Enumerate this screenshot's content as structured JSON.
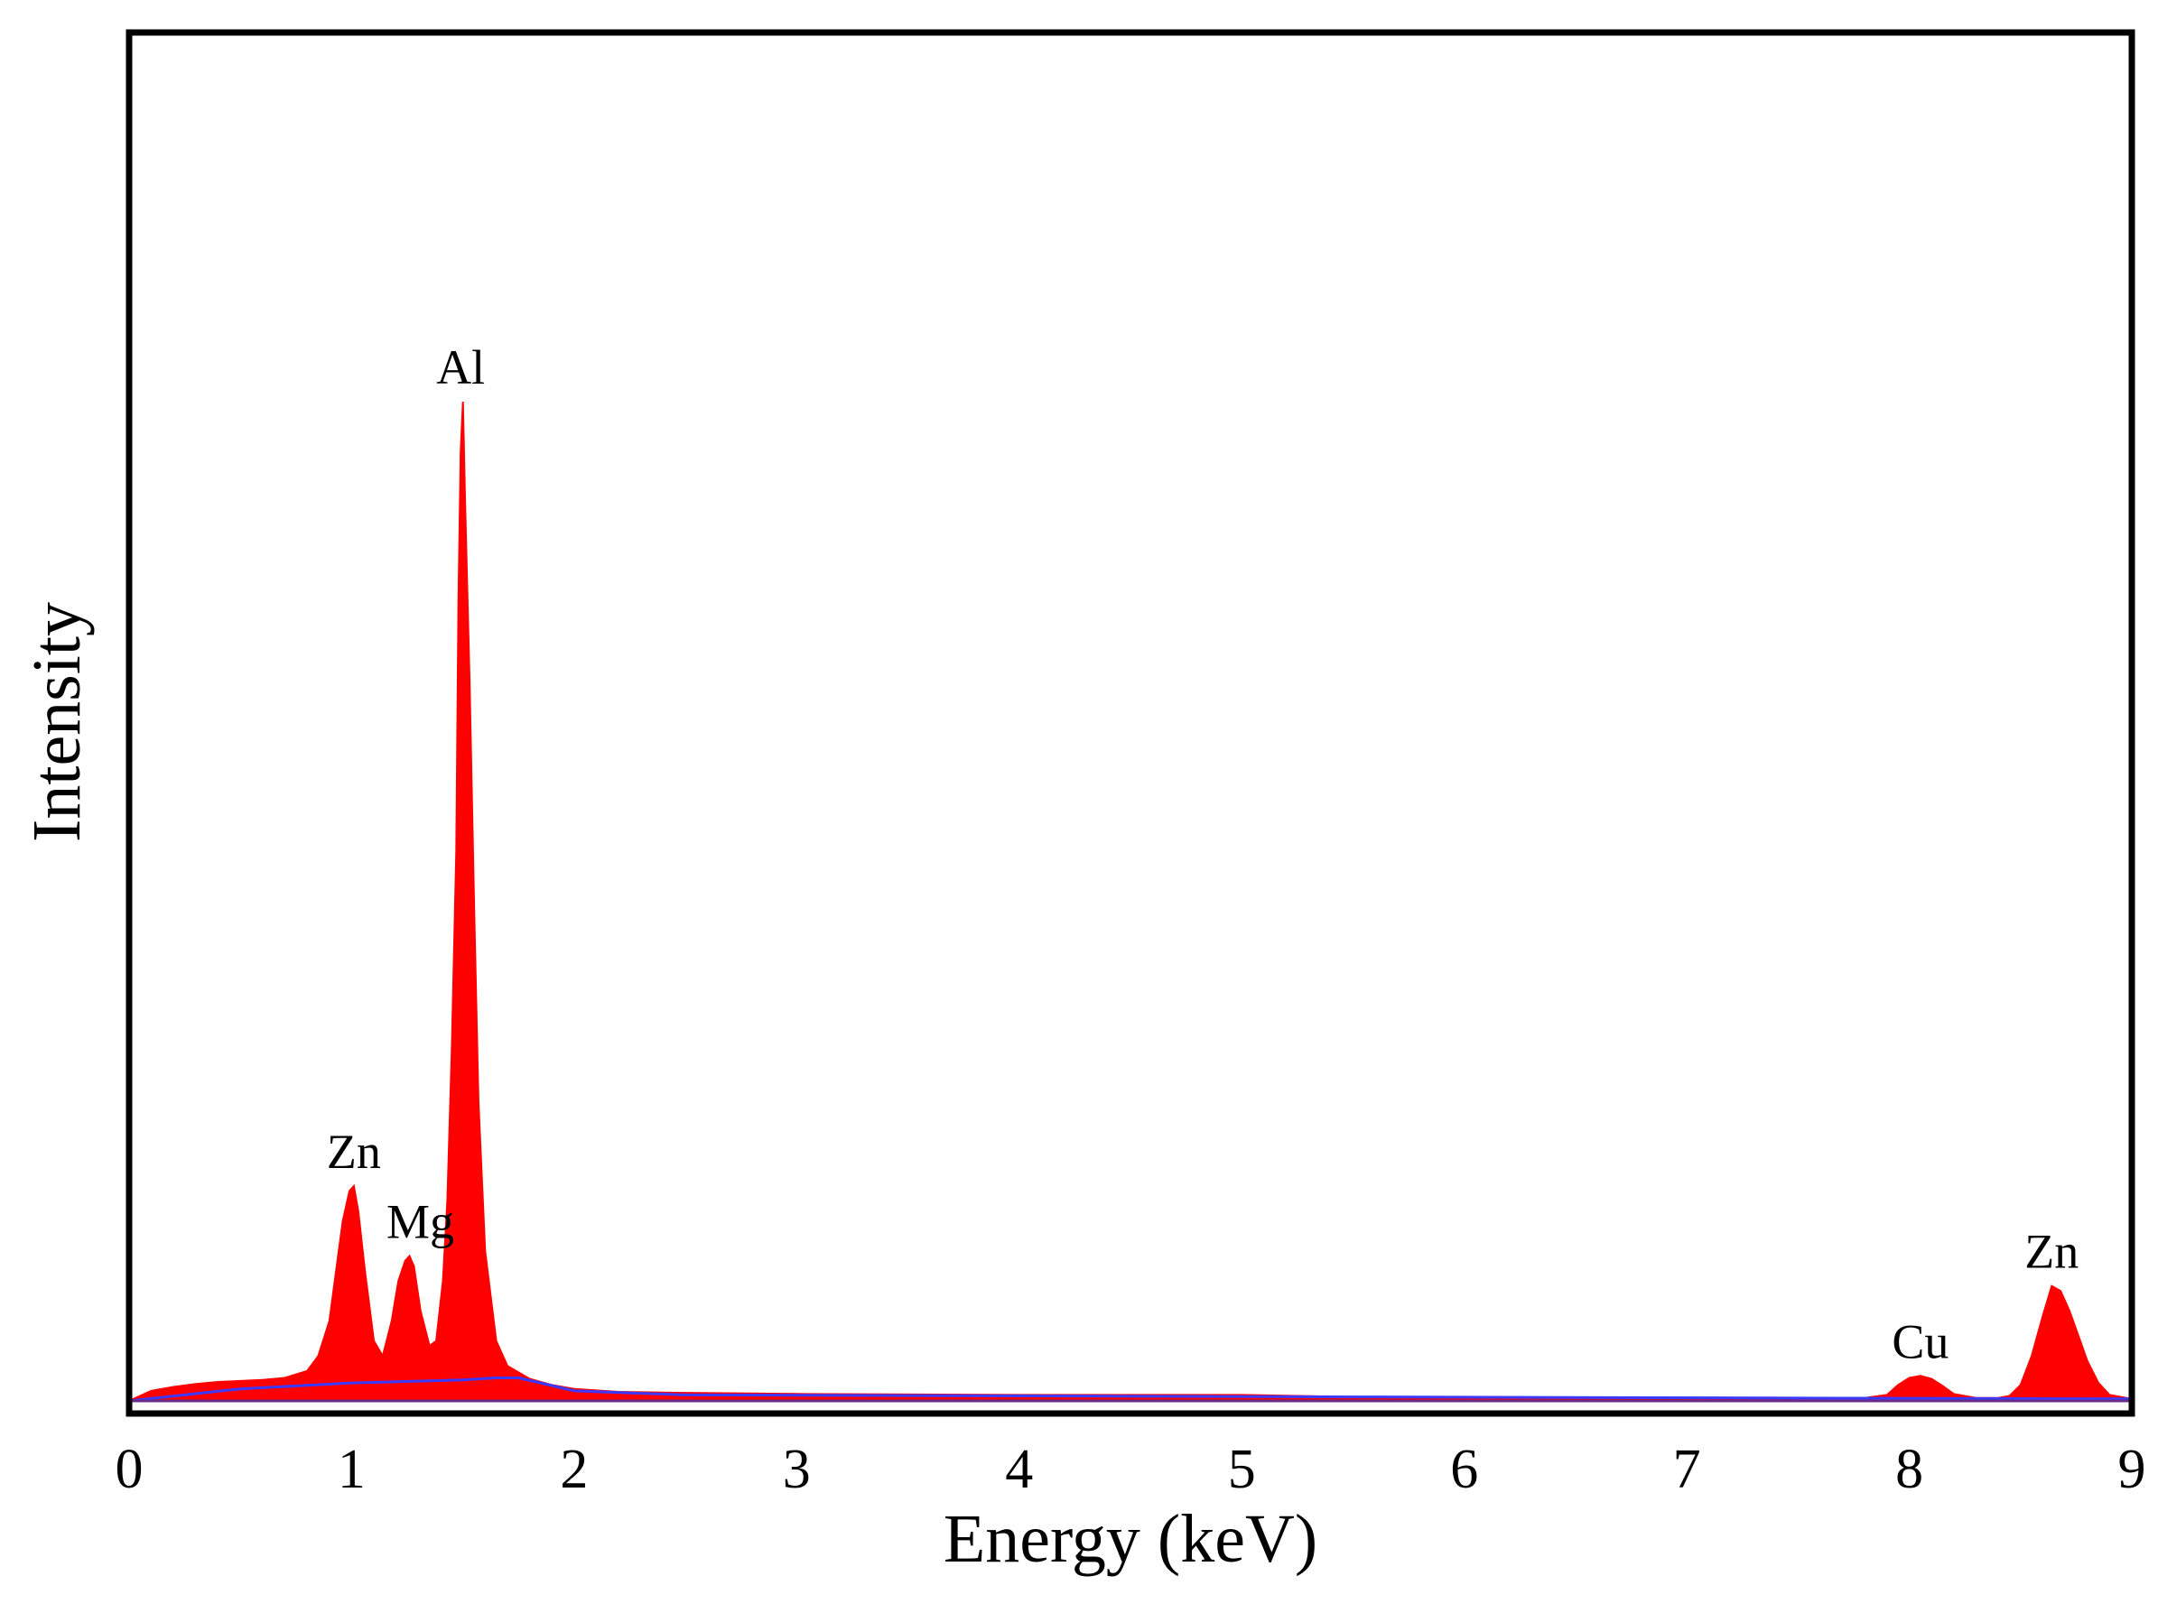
{
  "chart_data": {
    "type": "area",
    "xlabel": "Energy (keV)",
    "ylabel": "Intensity",
    "xlim": [
      0,
      9
    ],
    "ylim": [
      0,
      100
    ],
    "x_ticks": [
      "0",
      "1",
      "2",
      "3",
      "4",
      "5",
      "6",
      "7",
      "8",
      "9"
    ],
    "y_ticks_shown": false,
    "grid": false,
    "legend": "none",
    "colors": {
      "spectrum": "#ff0000",
      "background": "#3a3aff",
      "frame": "#000000"
    },
    "peaks": [
      {
        "label": "Zn",
        "energy": 1.01,
        "intensity": 21.5
      },
      {
        "label": "Mg",
        "energy": 1.26,
        "intensity": 14.5
      },
      {
        "label": "Al",
        "energy": 1.49,
        "intensity": 100
      },
      {
        "label": "Cu",
        "energy": 8.05,
        "intensity": 2.5
      },
      {
        "label": "Zn",
        "energy": 8.64,
        "intensity": 11.5
      }
    ],
    "spectrum": {
      "x": [
        0,
        0.1,
        0.2,
        0.3,
        0.4,
        0.5,
        0.6,
        0.7,
        0.8,
        0.85,
        0.9,
        0.93,
        0.96,
        0.99,
        1.01,
        1.03,
        1.06,
        1.1,
        1.14,
        1.18,
        1.21,
        1.24,
        1.26,
        1.28,
        1.31,
        1.35,
        1.38,
        1.41,
        1.43,
        1.45,
        1.47,
        1.48,
        1.49,
        1.5,
        1.51,
        1.53,
        1.55,
        1.57,
        1.6,
        1.65,
        1.7,
        1.8,
        1.9,
        2.0,
        2.2,
        2.5,
        3.0,
        4.0,
        5.0,
        5.5,
        6.0,
        7.0,
        7.8,
        7.9,
        7.95,
        8.0,
        8.05,
        8.1,
        8.15,
        8.2,
        8.3,
        8.4,
        8.45,
        8.5,
        8.55,
        8.6,
        8.64,
        8.68,
        8.72,
        8.76,
        8.8,
        8.85,
        8.9,
        9.0
      ],
      "intensity": [
        0,
        1.0,
        1.4,
        1.7,
        1.9,
        2.0,
        2.1,
        2.3,
        3.0,
        4.5,
        8.0,
        13.0,
        18.0,
        21.0,
        21.5,
        19.0,
        13.0,
        6.0,
        4.5,
        8.0,
        12.0,
        14.0,
        14.5,
        13.5,
        9.0,
        5.5,
        6.0,
        12.0,
        20.0,
        35.0,
        55.0,
        80.0,
        95.0,
        100.0,
        90.0,
        72.0,
        50.0,
        30.0,
        15.0,
        6.0,
        3.5,
        2.2,
        1.6,
        1.2,
        0.9,
        0.8,
        0.7,
        0.6,
        0.6,
        0.4,
        0.3,
        0.3,
        0.3,
        0.6,
        1.6,
        2.3,
        2.5,
        2.2,
        1.5,
        0.7,
        0.3,
        0.3,
        0.5,
        1.6,
        4.5,
        8.5,
        11.5,
        11.0,
        9.0,
        6.5,
        4.0,
        1.8,
        0.6,
        0.2
      ]
    },
    "background": {
      "x": [
        0,
        0.5,
        1.0,
        1.5,
        1.65,
        1.75,
        1.85,
        2.0,
        2.5,
        5.5,
        9.0
      ],
      "intensity": [
        0,
        1.2,
        1.8,
        2.1,
        2.3,
        2.3,
        1.8,
        1.0,
        0.6,
        0.4,
        0.2
      ]
    }
  }
}
